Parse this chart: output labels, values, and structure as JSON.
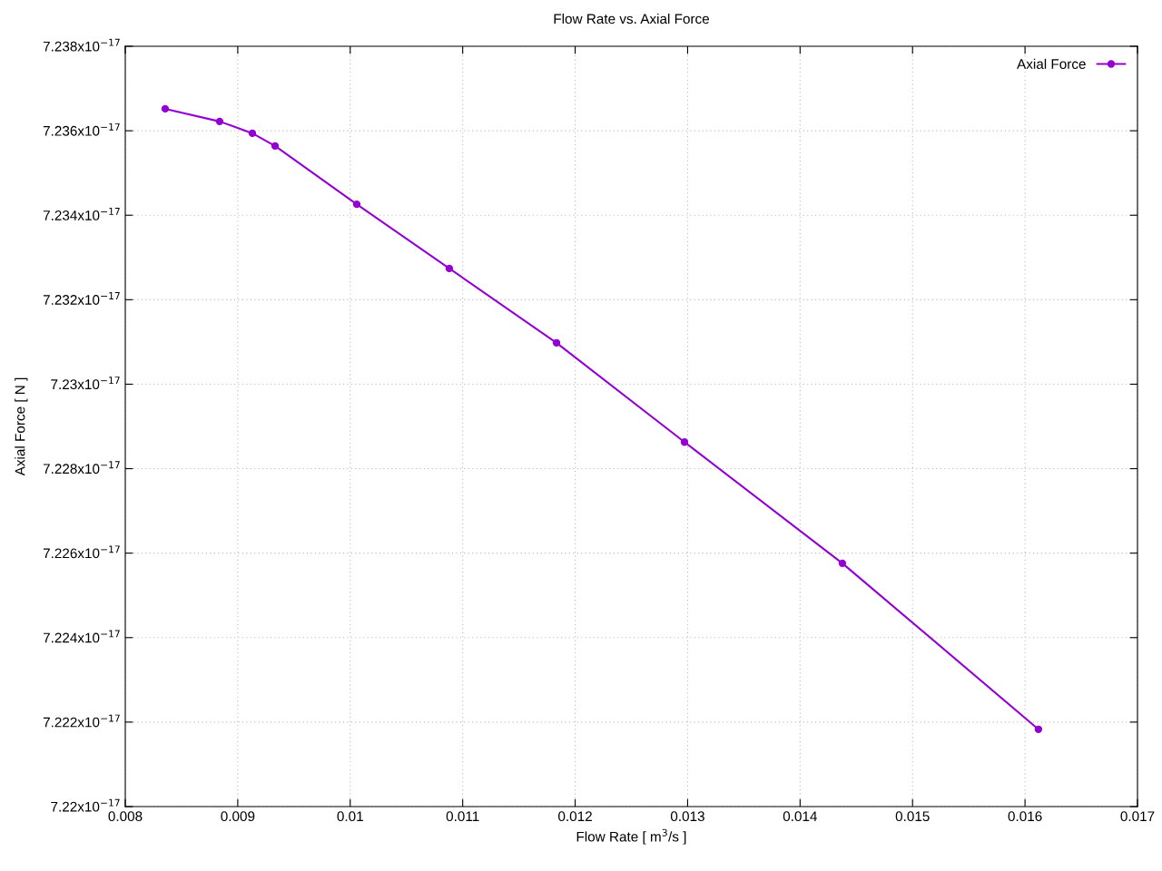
{
  "chart_data": {
    "type": "line",
    "title": "Flow Rate vs. Axial Force",
    "xlabel": "Flow Rate [ m$^{3}$/s ]",
    "ylabel": "Axial Force [ N ]",
    "x": [
      0.008355,
      0.008839,
      0.00913,
      0.009332,
      0.010058,
      0.010881,
      0.011834,
      0.012972,
      0.014376,
      0.016119
    ],
    "series": [
      {
        "name": "Axial Force",
        "color": "#9400d3",
        "values": [
          7.23652e-17,
          7.23622e-17,
          7.23594e-17,
          7.23564e-17,
          7.23426e-17,
          7.23274e-17,
          7.23098e-17,
          7.22863e-17,
          7.22576e-17,
          7.22183e-17
        ]
      }
    ],
    "xlim": [
      0.008,
      0.017
    ],
    "xticks": [
      0.008,
      0.009,
      0.01,
      0.011,
      0.012,
      0.013,
      0.014,
      0.015,
      0.016,
      0.017
    ],
    "ylim": [
      7.22e-17,
      7.238e-17
    ],
    "yticks": [
      {
        "value": 7.22e-17,
        "label": "7.22x10$^{−17}$"
      },
      {
        "value": 7.222e-17,
        "label": "7.222x10$^{−17}$"
      },
      {
        "value": 7.224e-17,
        "label": "7.224x10$^{−17}$"
      },
      {
        "value": 7.226e-17,
        "label": "7.226x10$^{−17}$"
      },
      {
        "value": 7.228e-17,
        "label": "7.228x10$^{−17}$"
      },
      {
        "value": 7.23e-17,
        "label": "7.23x10$^{−17}$"
      },
      {
        "value": 7.232e-17,
        "label": "7.232x10$^{−17}$"
      },
      {
        "value": 7.234e-17,
        "label": "7.234x10$^{−17}$"
      },
      {
        "value": 7.236e-17,
        "label": "7.236x10$^{−17}$"
      },
      {
        "value": 7.238e-17,
        "label": "7.238x10$^{−17}$"
      }
    ],
    "grid": true,
    "legend": "top right",
    "marker": "circle",
    "line_style": "solid"
  }
}
